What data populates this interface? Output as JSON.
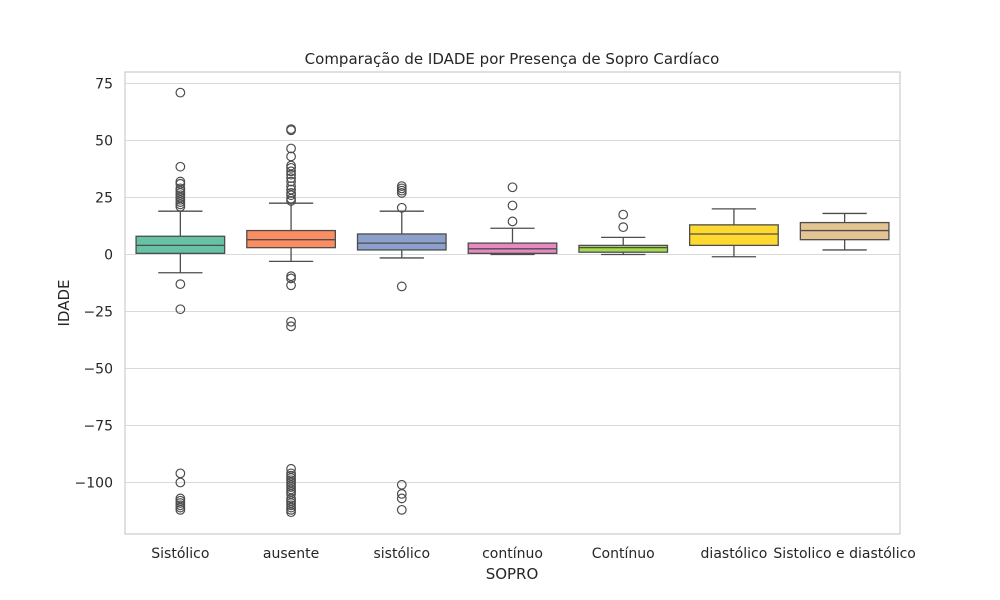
{
  "chart_data": {
    "type": "box",
    "title": "Comparação de IDADE por Presença de Sopro Cardíaco",
    "xlabel": "SOPRO",
    "ylabel": "IDADE",
    "ylim": [
      -118,
      80
    ],
    "yticks": [
      75,
      50,
      25,
      0,
      -25,
      -50,
      -75,
      -100
    ],
    "ytick_labels": [
      "75",
      "50",
      "25",
      "0",
      "−25",
      "−50",
      "−75",
      "−100"
    ],
    "grid": "horizontal",
    "categories": [
      "Sistólico",
      "ausente",
      "sistólico",
      "contínuo",
      "Contínuo",
      "diastólico",
      "Sistolico e diastólico"
    ],
    "boxes": [
      {
        "category": "Sistólico",
        "color": "#66c2a5",
        "q1": 0.5,
        "median": 4,
        "q3": 8,
        "whisker_low": -8,
        "whisker_high": 19,
        "outliers": [
          71,
          38.5,
          32,
          31,
          29,
          28,
          27,
          26,
          25,
          24,
          23,
          22,
          21,
          -13,
          -24,
          -96,
          -100,
          -107,
          -108,
          -109,
          -110,
          -111,
          -112
        ]
      },
      {
        "category": "ausente",
        "color": "#fc8d62",
        "q1": 3,
        "median": 6.5,
        "q3": 10.5,
        "whisker_low": -3,
        "whisker_high": 22.5,
        "outliers": [
          55,
          54.5,
          46.5,
          43,
          39,
          38,
          36.5,
          35,
          33.5,
          32,
          30,
          28.5,
          27,
          26,
          24.5,
          23.5,
          -9.5,
          -10.5,
          -13.5,
          -29.5,
          -31.5,
          -94,
          -96,
          -97,
          -98,
          -99,
          -100,
          -101,
          -102,
          -103,
          -104,
          -105,
          -107,
          -108,
          -109,
          -110,
          -111,
          -112,
          -113
        ]
      },
      {
        "category": "sistólico",
        "color": "#8da0cb",
        "q1": 2,
        "median": 5,
        "q3": 9,
        "whisker_low": -1.5,
        "whisker_high": 19,
        "outliers": [
          30,
          29,
          28,
          27,
          20.5,
          -14,
          -101,
          -105,
          -107,
          -112
        ]
      },
      {
        "category": "contínuo",
        "color": "#e78ac3",
        "q1": 0.5,
        "median": 2.5,
        "q3": 5,
        "whisker_low": 0,
        "whisker_high": 11.5,
        "outliers": [
          29.5,
          21.5,
          14.5
        ]
      },
      {
        "category": "Contínuo",
        "color": "#a6d854",
        "q1": 1,
        "median": 3,
        "q3": 4,
        "whisker_low": 0,
        "whisker_high": 7.5,
        "outliers": [
          17.5,
          12
        ]
      },
      {
        "category": "diastólico",
        "color": "#ffd92f",
        "q1": 4,
        "median": 9,
        "q3": 13,
        "whisker_low": -1,
        "whisker_high": 20,
        "outliers": []
      },
      {
        "category": "Sistolico e diastólico",
        "color": "#e5c494",
        "q1": 6.5,
        "median": 10.5,
        "q3": 14,
        "whisker_low": 2,
        "whisker_high": 18,
        "outliers": []
      }
    ]
  }
}
